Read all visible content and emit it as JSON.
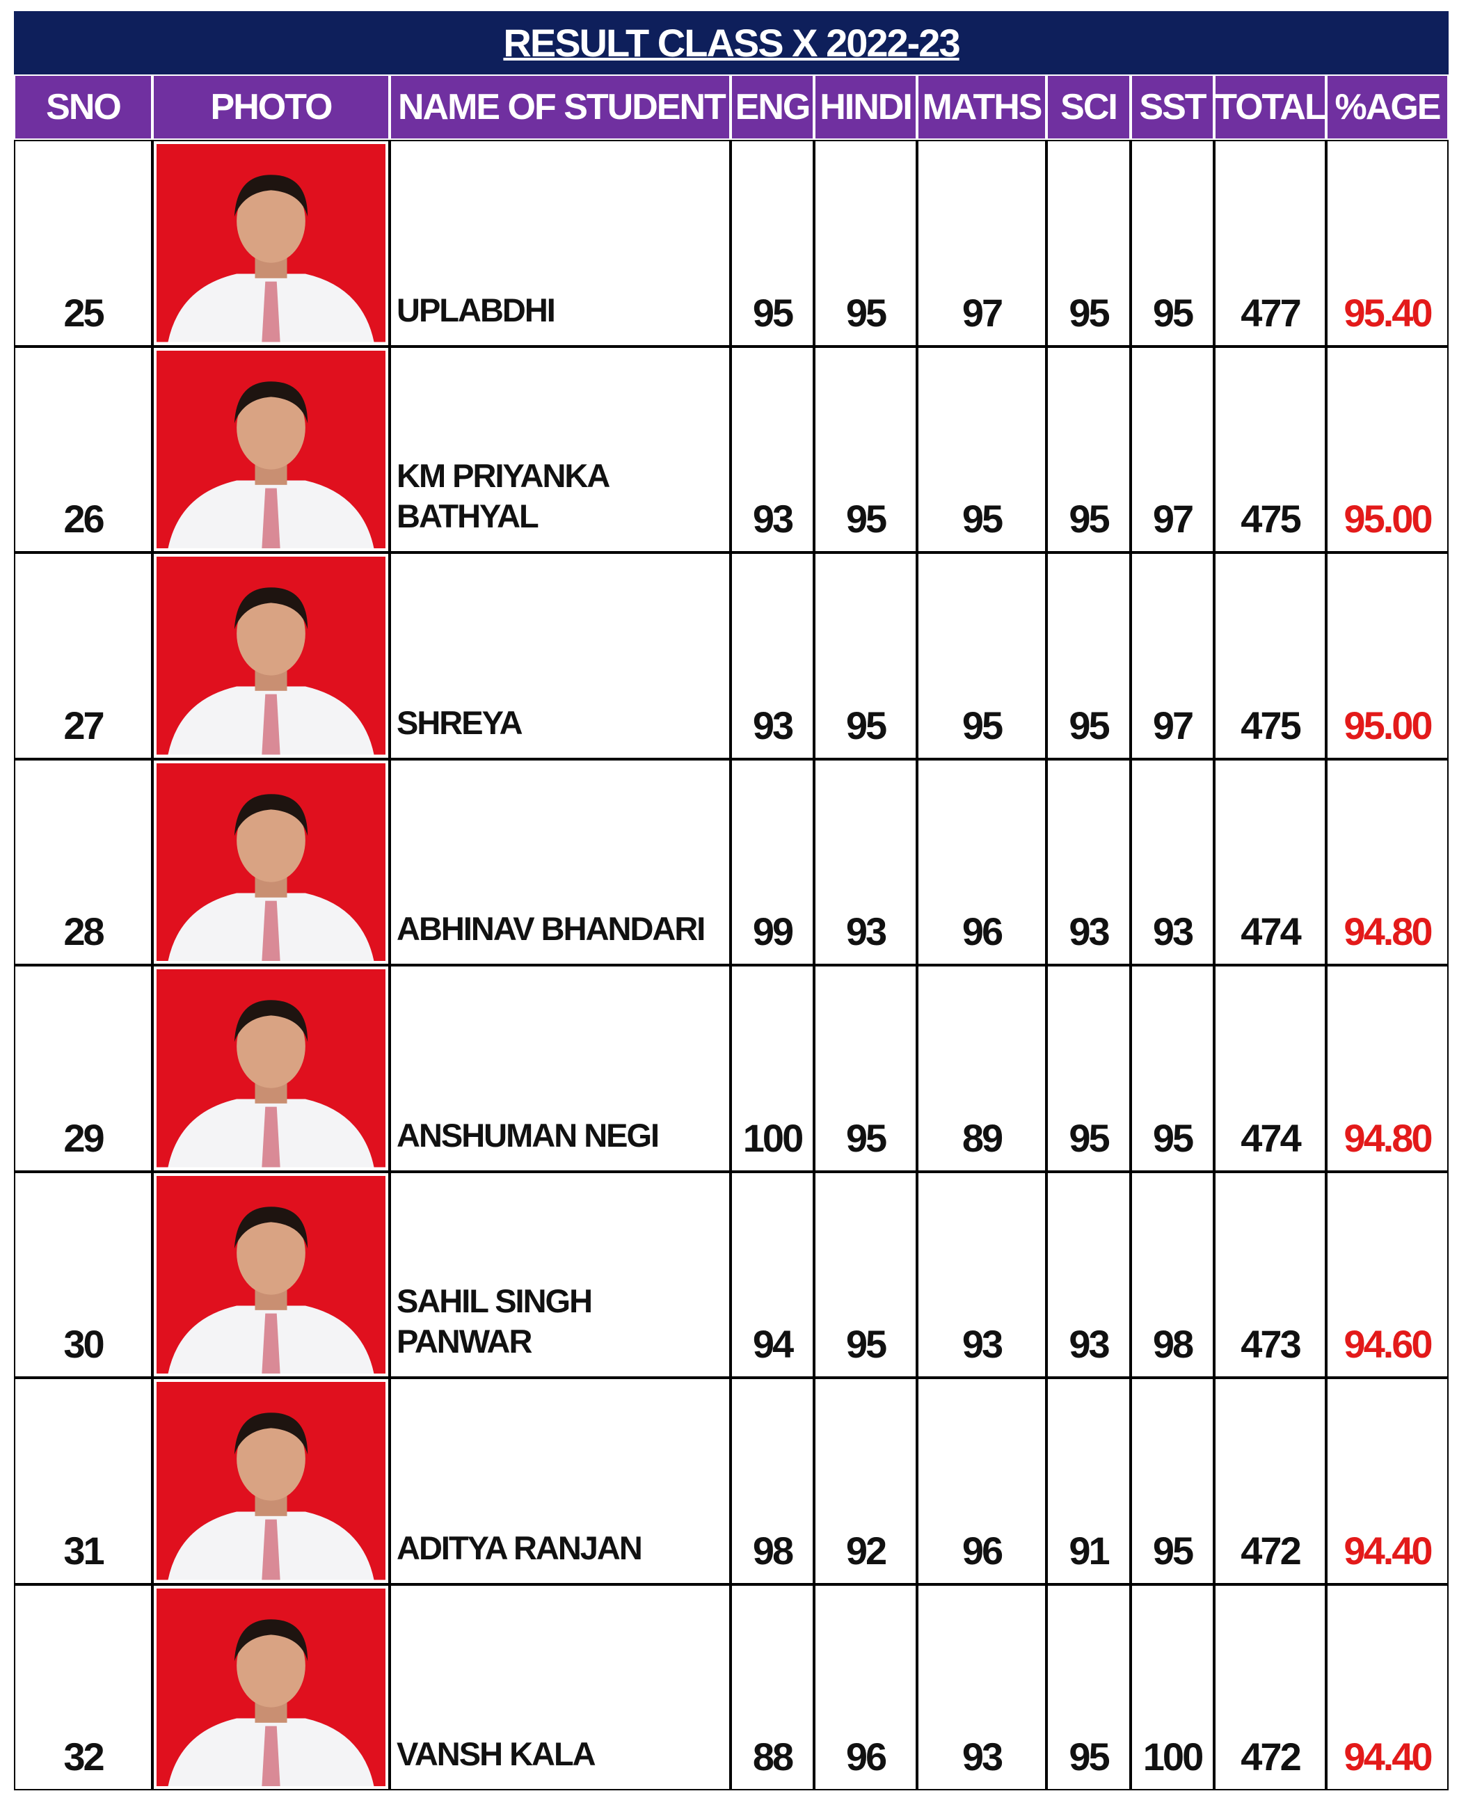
{
  "header": {
    "title": "RESULT CLASS X 2022-23"
  },
  "table": {
    "columns": [
      "SNO",
      "PHOTO",
      "NAME OF STUDENT",
      "ENG",
      "HINDI",
      "MATHS",
      "SCI",
      "SST",
      "TOTAL",
      "%AGE"
    ],
    "rows": [
      [
        25,
        "UPLABDHI",
        95,
        95,
        97,
        95,
        95,
        477,
        "95.40"
      ],
      [
        26,
        "KM PRIYANKA BATHYAL",
        93,
        95,
        95,
        95,
        97,
        475,
        "95.00"
      ],
      [
        27,
        "SHREYA",
        93,
        95,
        95,
        95,
        97,
        475,
        "95.00"
      ],
      [
        28,
        "ABHINAV BHANDARI",
        99,
        93,
        96,
        93,
        93,
        474,
        "94.80"
      ],
      [
        29,
        "ANSHUMAN NEGI",
        100,
        95,
        89,
        95,
        95,
        474,
        "94.80"
      ],
      [
        30,
        "SAHIL SINGH PANWAR",
        94,
        95,
        93,
        93,
        98,
        473,
        "94.60"
      ],
      [
        31,
        "ADITYA RANJAN",
        98,
        92,
        96,
        91,
        95,
        472,
        "94.40"
      ],
      [
        32,
        "VANSH KALA",
        88,
        96,
        93,
        95,
        100,
        472,
        "94.40"
      ]
    ]
  }
}
